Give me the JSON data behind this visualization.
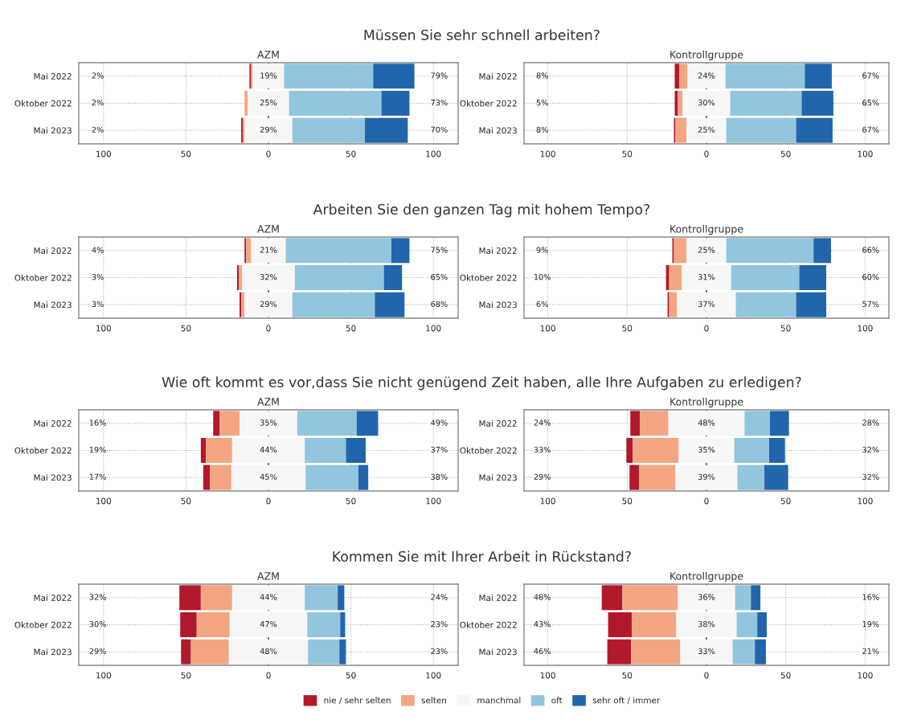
{
  "chart_data": [
    {
      "type": "bar",
      "orientation": "horizontal",
      "title": "AZM",
      "subtitle": "Müssen Sie sehr schnell arbeiten?",
      "categories": [
        "Mai 2022",
        "Oktober 2022",
        "Mai 2023"
      ],
      "series": [
        {
          "color": "#b2182b",
          "values": [
            1,
            null,
            1
          ],
          "base": [
            -11.5,
            null,
            -16.5
          ]
        },
        {
          "color": "#f4a582",
          "values": [
            1,
            2,
            1
          ],
          "base": [
            -10.5,
            -14.5,
            -15.5
          ]
        },
        {
          "color": "#f7f7f7",
          "values": [
            19,
            25,
            29
          ],
          "base": [
            -9.5,
            -12.5,
            -14.5
          ],
          "value_labels": [
            "19%",
            "25%",
            "29%"
          ]
        },
        {
          "color": "#92c5de",
          "values": [
            54,
            56,
            44
          ],
          "base": [
            9.5,
            12.5,
            14.5
          ]
        },
        {
          "color": "#2166ac",
          "values": [
            25,
            17,
            26
          ],
          "base": [
            63.5,
            68.5,
            58.5
          ]
        }
      ],
      "annotations": [
        "2%",
        "79%",
        "2%",
        "73%",
        "2%",
        "70%"
      ],
      "ref_lines": [
        {
          "axis": "x",
          "value": 0,
          "color": "#222222",
          "line_style": "dashed"
        }
      ],
      "xlim": [
        -115,
        115
      ],
      "xticks": [
        {
          "value": -100,
          "label": "100"
        },
        {
          "value": -50,
          "label": "50"
        },
        0,
        {
          "value": 50,
          "label": "50"
        },
        100
      ],
      "grid": true
    },
    {
      "type": "bar",
      "orientation": "horizontal",
      "title": "Kontrollgruppe",
      "categories": [
        "Mai 2022",
        "Oktober 2022",
        "Mai 2023"
      ],
      "series": [
        {
          "color": "#b2182b",
          "values": [
            3,
            2,
            1
          ],
          "base": [
            -20,
            -20,
            -20.5
          ]
        },
        {
          "color": "#f4a582",
          "values": [
            5,
            3,
            7
          ],
          "base": [
            -17,
            -18,
            -19.5
          ]
        },
        {
          "color": "#f7f7f7",
          "values": [
            24,
            30,
            25
          ],
          "base": [
            -12,
            -15,
            -12.5
          ],
          "value_labels": [
            "24%",
            "30%",
            "25%"
          ]
        },
        {
          "color": "#92c5de",
          "values": [
            50,
            45,
            44
          ],
          "base": [
            12,
            15,
            12.5
          ]
        },
        {
          "color": "#2166ac",
          "values": [
            17,
            20,
            23
          ],
          "base": [
            62,
            60,
            56.5
          ]
        }
      ],
      "annotations": [
        "8%",
        "67%",
        "5%",
        "65%",
        "8%",
        "67%"
      ],
      "ref_lines": [
        {
          "axis": "x",
          "value": 0,
          "color": "#222222",
          "line_style": "dashed"
        }
      ],
      "xlim": [
        -115,
        115
      ],
      "xticks": [
        {
          "value": -100,
          "label": "100"
        },
        {
          "value": -50,
          "label": "50"
        },
        0,
        {
          "value": 50,
          "label": "50"
        },
        100
      ],
      "grid": true
    },
    {
      "type": "bar",
      "orientation": "horizontal",
      "title": "AZM",
      "subtitle": "Arbeiten Sie den ganzen Tag mit hohem Tempo?",
      "categories": [
        "Mai 2022",
        "Oktober 2022",
        "Mai 2023"
      ],
      "series": [
        {
          "color": "#b2182b",
          "values": [
            1,
            1,
            1
          ],
          "base": [
            -14.5,
            -19,
            -17.5
          ]
        },
        {
          "color": "#f4a582",
          "values": [
            3,
            2,
            2
          ],
          "base": [
            -13.5,
            -18,
            -16.5
          ]
        },
        {
          "color": "#f7f7f7",
          "values": [
            21,
            32,
            29
          ],
          "base": [
            -10.5,
            -16,
            -14.5
          ],
          "value_labels": [
            "21%",
            "32%",
            "29%"
          ]
        },
        {
          "color": "#92c5de",
          "values": [
            64,
            54,
            50
          ],
          "base": [
            10.5,
            16,
            14.5
          ]
        },
        {
          "color": "#2166ac",
          "values": [
            11,
            11,
            18
          ],
          "base": [
            74.5,
            70,
            64.5
          ]
        }
      ],
      "annotations": [
        "4%",
        "75%",
        "3%",
        "65%",
        "3%",
        "68%"
      ],
      "ref_lines": [
        {
          "axis": "x",
          "value": 0,
          "color": "#222222",
          "line_style": "dashed"
        }
      ],
      "xlim": [
        -115,
        115
      ],
      "xticks": [
        {
          "value": -100,
          "label": "100"
        },
        {
          "value": -50,
          "label": "50"
        },
        0,
        {
          "value": 50,
          "label": "50"
        },
        100
      ],
      "grid": true
    },
    {
      "type": "bar",
      "orientation": "horizontal",
      "title": "Kontrollgruppe",
      "categories": [
        "Mai 2022",
        "Oktober 2022",
        "Mai 2023"
      ],
      "series": [
        {
          "color": "#b2182b",
          "values": [
            1,
            2,
            1
          ],
          "base": [
            -21.5,
            -25.5,
            -24.5
          ]
        },
        {
          "color": "#f4a582",
          "values": [
            8,
            8,
            5
          ],
          "base": [
            -20.5,
            -23.5,
            -23.5
          ]
        },
        {
          "color": "#f7f7f7",
          "values": [
            25,
            31,
            37
          ],
          "base": [
            -12.5,
            -15.5,
            -18.5
          ],
          "value_labels": [
            "25%",
            "31%",
            "37%"
          ]
        },
        {
          "color": "#92c5de",
          "values": [
            55,
            43,
            38
          ],
          "base": [
            12.5,
            15.5,
            18.5
          ]
        },
        {
          "color": "#2166ac",
          "values": [
            11,
            17,
            19
          ],
          "base": [
            67.5,
            58.5,
            56.5
          ]
        }
      ],
      "annotations": [
        "9%",
        "66%",
        "10%",
        "60%",
        "6%",
        "57%"
      ],
      "ref_lines": [
        {
          "axis": "x",
          "value": 0,
          "color": "#222222",
          "line_style": "dashed"
        }
      ],
      "xlim": [
        -115,
        115
      ],
      "xticks": [
        {
          "value": -100,
          "label": "100"
        },
        {
          "value": -50,
          "label": "50"
        },
        0,
        {
          "value": 50,
          "label": "50"
        },
        100
      ],
      "grid": true
    },
    {
      "type": "bar",
      "orientation": "horizontal",
      "title": "AZM",
      "subtitle": "Wie oft kommt es vor,dass Sie nicht genügend Zeit haben, alle Ihre Aufgaben zu erledigen?",
      "categories": [
        "Mai 2022",
        "Oktober 2022",
        "Mai 2023"
      ],
      "series": [
        {
          "color": "#b2182b",
          "values": [
            4,
            3,
            4
          ],
          "base": [
            -33.5,
            -41,
            -39.5
          ]
        },
        {
          "color": "#f4a582",
          "values": [
            12,
            16,
            13
          ],
          "base": [
            -29.5,
            -38,
            -35.5
          ]
        },
        {
          "color": "#f7f7f7",
          "values": [
            35,
            44,
            45
          ],
          "base": [
            -17.5,
            -22,
            -22.5
          ],
          "value_labels": [
            "35%",
            "44%",
            "45%"
          ]
        },
        {
          "color": "#92c5de",
          "values": [
            36,
            25,
            32
          ],
          "base": [
            17.5,
            22,
            22.5
          ]
        },
        {
          "color": "#2166ac",
          "values": [
            13,
            12,
            6
          ],
          "base": [
            53.5,
            47,
            54.5
          ]
        }
      ],
      "annotations": [
        "16%",
        "49%",
        "19%",
        "37%",
        "17%",
        "38%"
      ],
      "ref_lines": [
        {
          "axis": "x",
          "value": 0,
          "color": "#222222",
          "line_style": "dashed"
        }
      ],
      "xlim": [
        -115,
        115
      ],
      "xticks": [
        {
          "value": -100,
          "label": "100"
        },
        {
          "value": -50,
          "label": "50"
        },
        0,
        {
          "value": 50,
          "label": "50"
        },
        100
      ],
      "grid": true
    },
    {
      "type": "bar",
      "orientation": "horizontal",
      "title": "Kontrollgruppe",
      "categories": [
        "Mai 2022",
        "Oktober 2022",
        "Mai 2023"
      ],
      "series": [
        {
          "color": "#b2182b",
          "values": [
            6,
            4,
            6
          ],
          "base": [
            -48,
            -50.5,
            -48.5
          ]
        },
        {
          "color": "#f4a582",
          "values": [
            18,
            29,
            23
          ],
          "base": [
            -42,
            -46.5,
            -42.5
          ]
        },
        {
          "color": "#f7f7f7",
          "values": [
            48,
            35,
            39
          ],
          "base": [
            -24,
            -17.5,
            -19.5
          ],
          "value_labels": [
            "48%",
            "35%",
            "39%"
          ]
        },
        {
          "color": "#92c5de",
          "values": [
            16,
            22,
            17
          ],
          "base": [
            24,
            17.5,
            19.5
          ]
        },
        {
          "color": "#2166ac",
          "values": [
            12,
            10,
            15
          ],
          "base": [
            40,
            39.5,
            36.5
          ]
        }
      ],
      "annotations": [
        "24%",
        "28%",
        "33%",
        "32%",
        "29%",
        "32%"
      ],
      "ref_lines": [
        {
          "axis": "x",
          "value": 0,
          "color": "#222222",
          "line_style": "dashed"
        }
      ],
      "xlim": [
        -115,
        115
      ],
      "xticks": [
        {
          "value": -100,
          "label": "100"
        },
        {
          "value": -50,
          "label": "50"
        },
        0,
        {
          "value": 50,
          "label": "50"
        },
        100
      ],
      "grid": true
    },
    {
      "type": "bar",
      "orientation": "horizontal",
      "title": "AZM",
      "subtitle": "Kommen Sie mit Ihrer Arbeit in Rückstand?",
      "categories": [
        "Mai 2022",
        "Oktober 2022",
        "Mai 2023"
      ],
      "series": [
        {
          "color": "#b2182b",
          "values": [
            13,
            10,
            6
          ],
          "base": [
            -54,
            -53.5,
            -53
          ]
        },
        {
          "color": "#f4a582",
          "values": [
            19,
            20,
            23
          ],
          "base": [
            -41,
            -43.5,
            -47
          ]
        },
        {
          "color": "#f7f7f7",
          "values": [
            44,
            47,
            48
          ],
          "base": [
            -22,
            -23.5,
            -24
          ],
          "value_labels": [
            "44%",
            "47%",
            "48%"
          ]
        },
        {
          "color": "#92c5de",
          "values": [
            20,
            20,
            19
          ],
          "base": [
            22,
            23.5,
            24
          ]
        },
        {
          "color": "#2166ac",
          "values": [
            4,
            3,
            4
          ],
          "base": [
            42,
            43.5,
            43
          ]
        }
      ],
      "annotations": [
        "32%",
        "24%",
        "30%",
        "23%",
        "29%",
        "23%"
      ],
      "ref_lines": [
        {
          "axis": "x",
          "value": 0,
          "color": "#222222",
          "line_style": "dashed"
        }
      ],
      "xlim": [
        -115,
        115
      ],
      "xticks": [
        {
          "value": -100,
          "label": "100"
        },
        {
          "value": -50,
          "label": "50"
        },
        0,
        {
          "value": 50,
          "label": "50"
        },
        100
      ],
      "grid": true
    },
    {
      "type": "bar",
      "orientation": "horizontal",
      "title": "Kontrollgruppe",
      "categories": [
        "Mai 2022",
        "Oktober 2022",
        "Mai 2023"
      ],
      "series": [
        {
          "name": "nie / sehr selten",
          "color": "#b2182b",
          "values": [
            13,
            15,
            15
          ],
          "base": [
            -66,
            -62,
            -62.5
          ]
        },
        {
          "name": "selten",
          "color": "#f4a582",
          "values": [
            35,
            28,
            31
          ],
          "base": [
            -53,
            -47,
            -47.5
          ]
        },
        {
          "name": "manchmal",
          "color": "#f7f7f7",
          "values": [
            36,
            38,
            33
          ],
          "base": [
            -18,
            -19,
            -16.5
          ],
          "value_labels": [
            "36%",
            "38%",
            "33%"
          ]
        },
        {
          "name": "oft",
          "color": "#92c5de",
          "values": [
            10,
            13,
            14
          ],
          "base": [
            18,
            19,
            16.5
          ]
        },
        {
          "name": "sehr oft / immer",
          "color": "#2166ac",
          "values": [
            6,
            6,
            7
          ],
          "base": [
            28,
            32,
            30.5
          ]
        }
      ],
      "annotations": [
        "48%",
        "16%",
        "43%",
        "19%",
        "46%",
        "21%"
      ],
      "ref_lines": [
        {
          "axis": "x",
          "value": 0,
          "color": "#222222",
          "line_style": "dashed"
        }
      ],
      "xlim": [
        -115,
        115
      ],
      "xticks": [
        {
          "value": -100,
          "label": "100"
        },
        {
          "value": -50,
          "label": "50"
        },
        0,
        {
          "value": 50,
          "label": "50"
        },
        100
      ],
      "grid": true,
      "legend": "bottom"
    }
  ]
}
